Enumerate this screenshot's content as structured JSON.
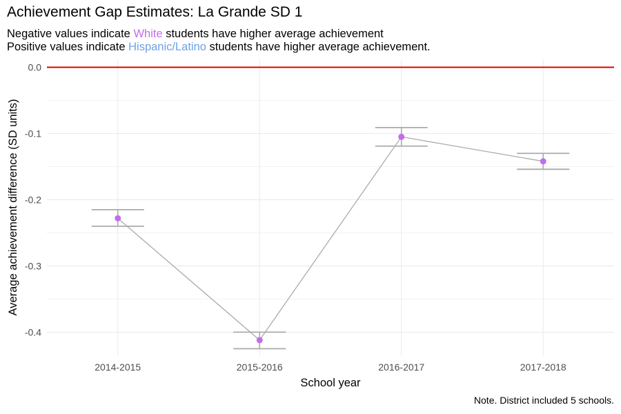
{
  "title": "Achievement Gap Estimates: La Grande SD 1",
  "subtitle": {
    "line1_prefix": "Negative values indicate ",
    "line1_highlight": "White",
    "line1_suffix": " students have higher average achievement",
    "line2_prefix": "Positive values indicate ",
    "line2_highlight": "Hispanic/Latino",
    "line2_suffix": " students have higher average achievement."
  },
  "note": "Note. District included 5 schools.",
  "colors": {
    "white_highlight": "#c36de8",
    "hispanic_highlight": "#6ea1e6",
    "point": "#c36de8",
    "line": "#aaaaaa",
    "errorbar": "#aaaaaa",
    "reference_line": "#dd0000",
    "grid": "#ebebeb"
  },
  "chart_data": {
    "type": "line",
    "title": "Achievement Gap Estimates: La Grande SD 1",
    "xlabel": "School year",
    "ylabel": "Average achievement difference (SD units)",
    "categories": [
      "2014-2015",
      "2015-2016",
      "2016-2017",
      "2017-2018"
    ],
    "values": [
      -0.228,
      -0.412,
      -0.105,
      -0.142
    ],
    "error_lower": [
      -0.24,
      -0.425,
      -0.119,
      -0.154
    ],
    "error_upper": [
      -0.215,
      -0.4,
      -0.091,
      -0.13
    ],
    "ylim": [
      -0.435,
      0.012
    ],
    "yticks": [
      0.0,
      -0.1,
      -0.2,
      -0.3,
      -0.4
    ],
    "ytick_labels": [
      "0.0",
      "-0.1",
      "-0.2",
      "-0.3",
      "-0.4"
    ],
    "reference_line_y": 0.0,
    "grid": true
  }
}
